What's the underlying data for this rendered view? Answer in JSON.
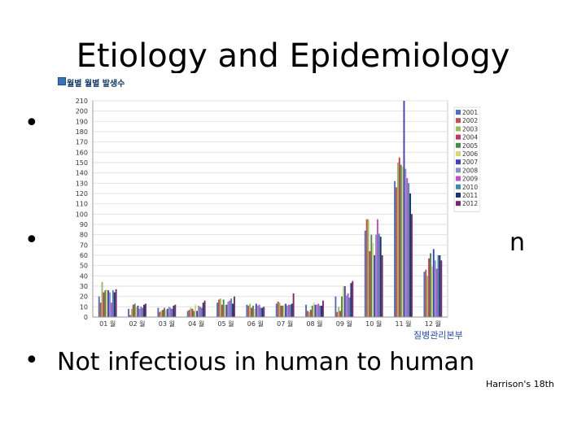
{
  "slide": {
    "title": "Etiology and Epidemiology",
    "bullet_dot": "•",
    "bullet_right_fragment": "n",
    "bullet_bottom": "Not infectious in human to human",
    "citation": "Harrison's 18th"
  },
  "chart_data": {
    "type": "bar",
    "title": "월별 월별 발생수",
    "source": "질병관리본부",
    "categories": [
      "01 월",
      "02 월",
      "03 월",
      "04 월",
      "05 월",
      "06 월",
      "07 월",
      "08 월",
      "09 월",
      "10 월",
      "11 월",
      "12 월"
    ],
    "ylim": [
      0,
      210
    ],
    "yticks": [
      0,
      10,
      20,
      30,
      40,
      50,
      60,
      70,
      80,
      90,
      100,
      110,
      120,
      130,
      140,
      150,
      160,
      170,
      180,
      190,
      200,
      210
    ],
    "grid": true,
    "legend_position": "right",
    "series": [
      {
        "name": "2001",
        "color": "#4f6fbf",
        "values": [
          20,
          8,
          9,
          6,
          14,
          12,
          13,
          12,
          20,
          84,
          132,
          44
        ]
      },
      {
        "name": "2002",
        "color": "#c0504d",
        "values": [
          14,
          2,
          5,
          7,
          17,
          11,
          15,
          6,
          5,
          95,
          126,
          46
        ]
      },
      {
        "name": "2003",
        "color": "#9bbb59",
        "values": [
          34,
          8,
          6,
          9,
          18,
          13,
          14,
          5,
          10,
          95,
          150,
          40
        ]
      },
      {
        "name": "2004",
        "color": "#c0385a",
        "values": [
          24,
          12,
          7,
          8,
          12,
          9,
          11,
          7,
          6,
          64,
          155,
          57
        ]
      },
      {
        "name": "2005",
        "color": "#4a8a4a",
        "values": [
          26,
          13,
          9,
          6,
          17,
          11,
          11,
          11,
          20,
          80,
          148,
          62
        ]
      },
      {
        "name": "2006",
        "color": "#d8d870",
        "values": [
          27,
          10,
          7,
          12,
          12,
          8,
          12,
          14,
          30,
          72,
          146,
          49
        ]
      },
      {
        "name": "2007",
        "color": "#4040c0",
        "values": [
          26,
          11,
          8,
          6,
          12,
          13,
          13,
          12,
          30,
          60,
          210,
          66
        ]
      },
      {
        "name": "2008",
        "color": "#8a90c8",
        "values": [
          24,
          8,
          10,
          11,
          15,
          11,
          11,
          12,
          21,
          80,
          144,
          55
        ]
      },
      {
        "name": "2009",
        "color": "#c050c8",
        "values": [
          14,
          10,
          9,
          10,
          16,
          12,
          12,
          13,
          23,
          95,
          135,
          47
        ]
      },
      {
        "name": "2010",
        "color": "#3f8ca8",
        "values": [
          26,
          9,
          8,
          9,
          18,
          9,
          12,
          11,
          19,
          81,
          130,
          60
        ]
      },
      {
        "name": "2011",
        "color": "#203070",
        "values": [
          24,
          12,
          11,
          14,
          13,
          9,
          13,
          11,
          33,
          78,
          120,
          60
        ]
      },
      {
        "name": "2012",
        "color": "#7a2a6a",
        "values": [
          27,
          13,
          12,
          16,
          20,
          10,
          23,
          16,
          35,
          60,
          100,
          55
        ]
      }
    ]
  }
}
